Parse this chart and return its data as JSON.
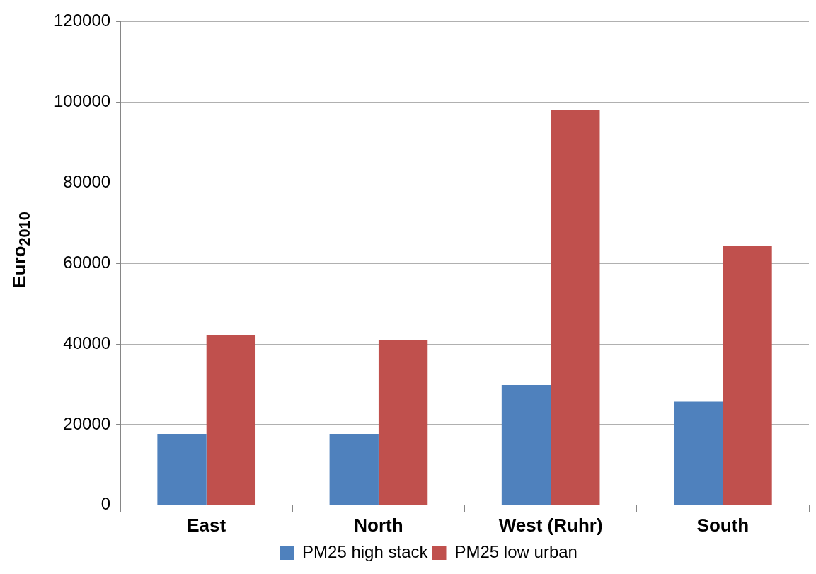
{
  "chart_data": {
    "type": "bar",
    "ylabel": "Euro$_{2010}$",
    "categories": [
      "East",
      "North",
      "West (Ruhr)",
      "South"
    ],
    "series": [
      {
        "name": "PM25 high stack",
        "color": "#4f81bd",
        "values": [
          17700,
          17700,
          29800,
          25700
        ]
      },
      {
        "name": "PM25 low urban",
        "color": "#c0504d",
        "values": [
          42200,
          41000,
          98100,
          64300
        ]
      }
    ],
    "ylim": [
      0,
      120000
    ],
    "yticks": [
      0,
      20000,
      40000,
      60000,
      80000,
      100000,
      120000
    ],
    "grid": "y",
    "legend": "bottom"
  }
}
